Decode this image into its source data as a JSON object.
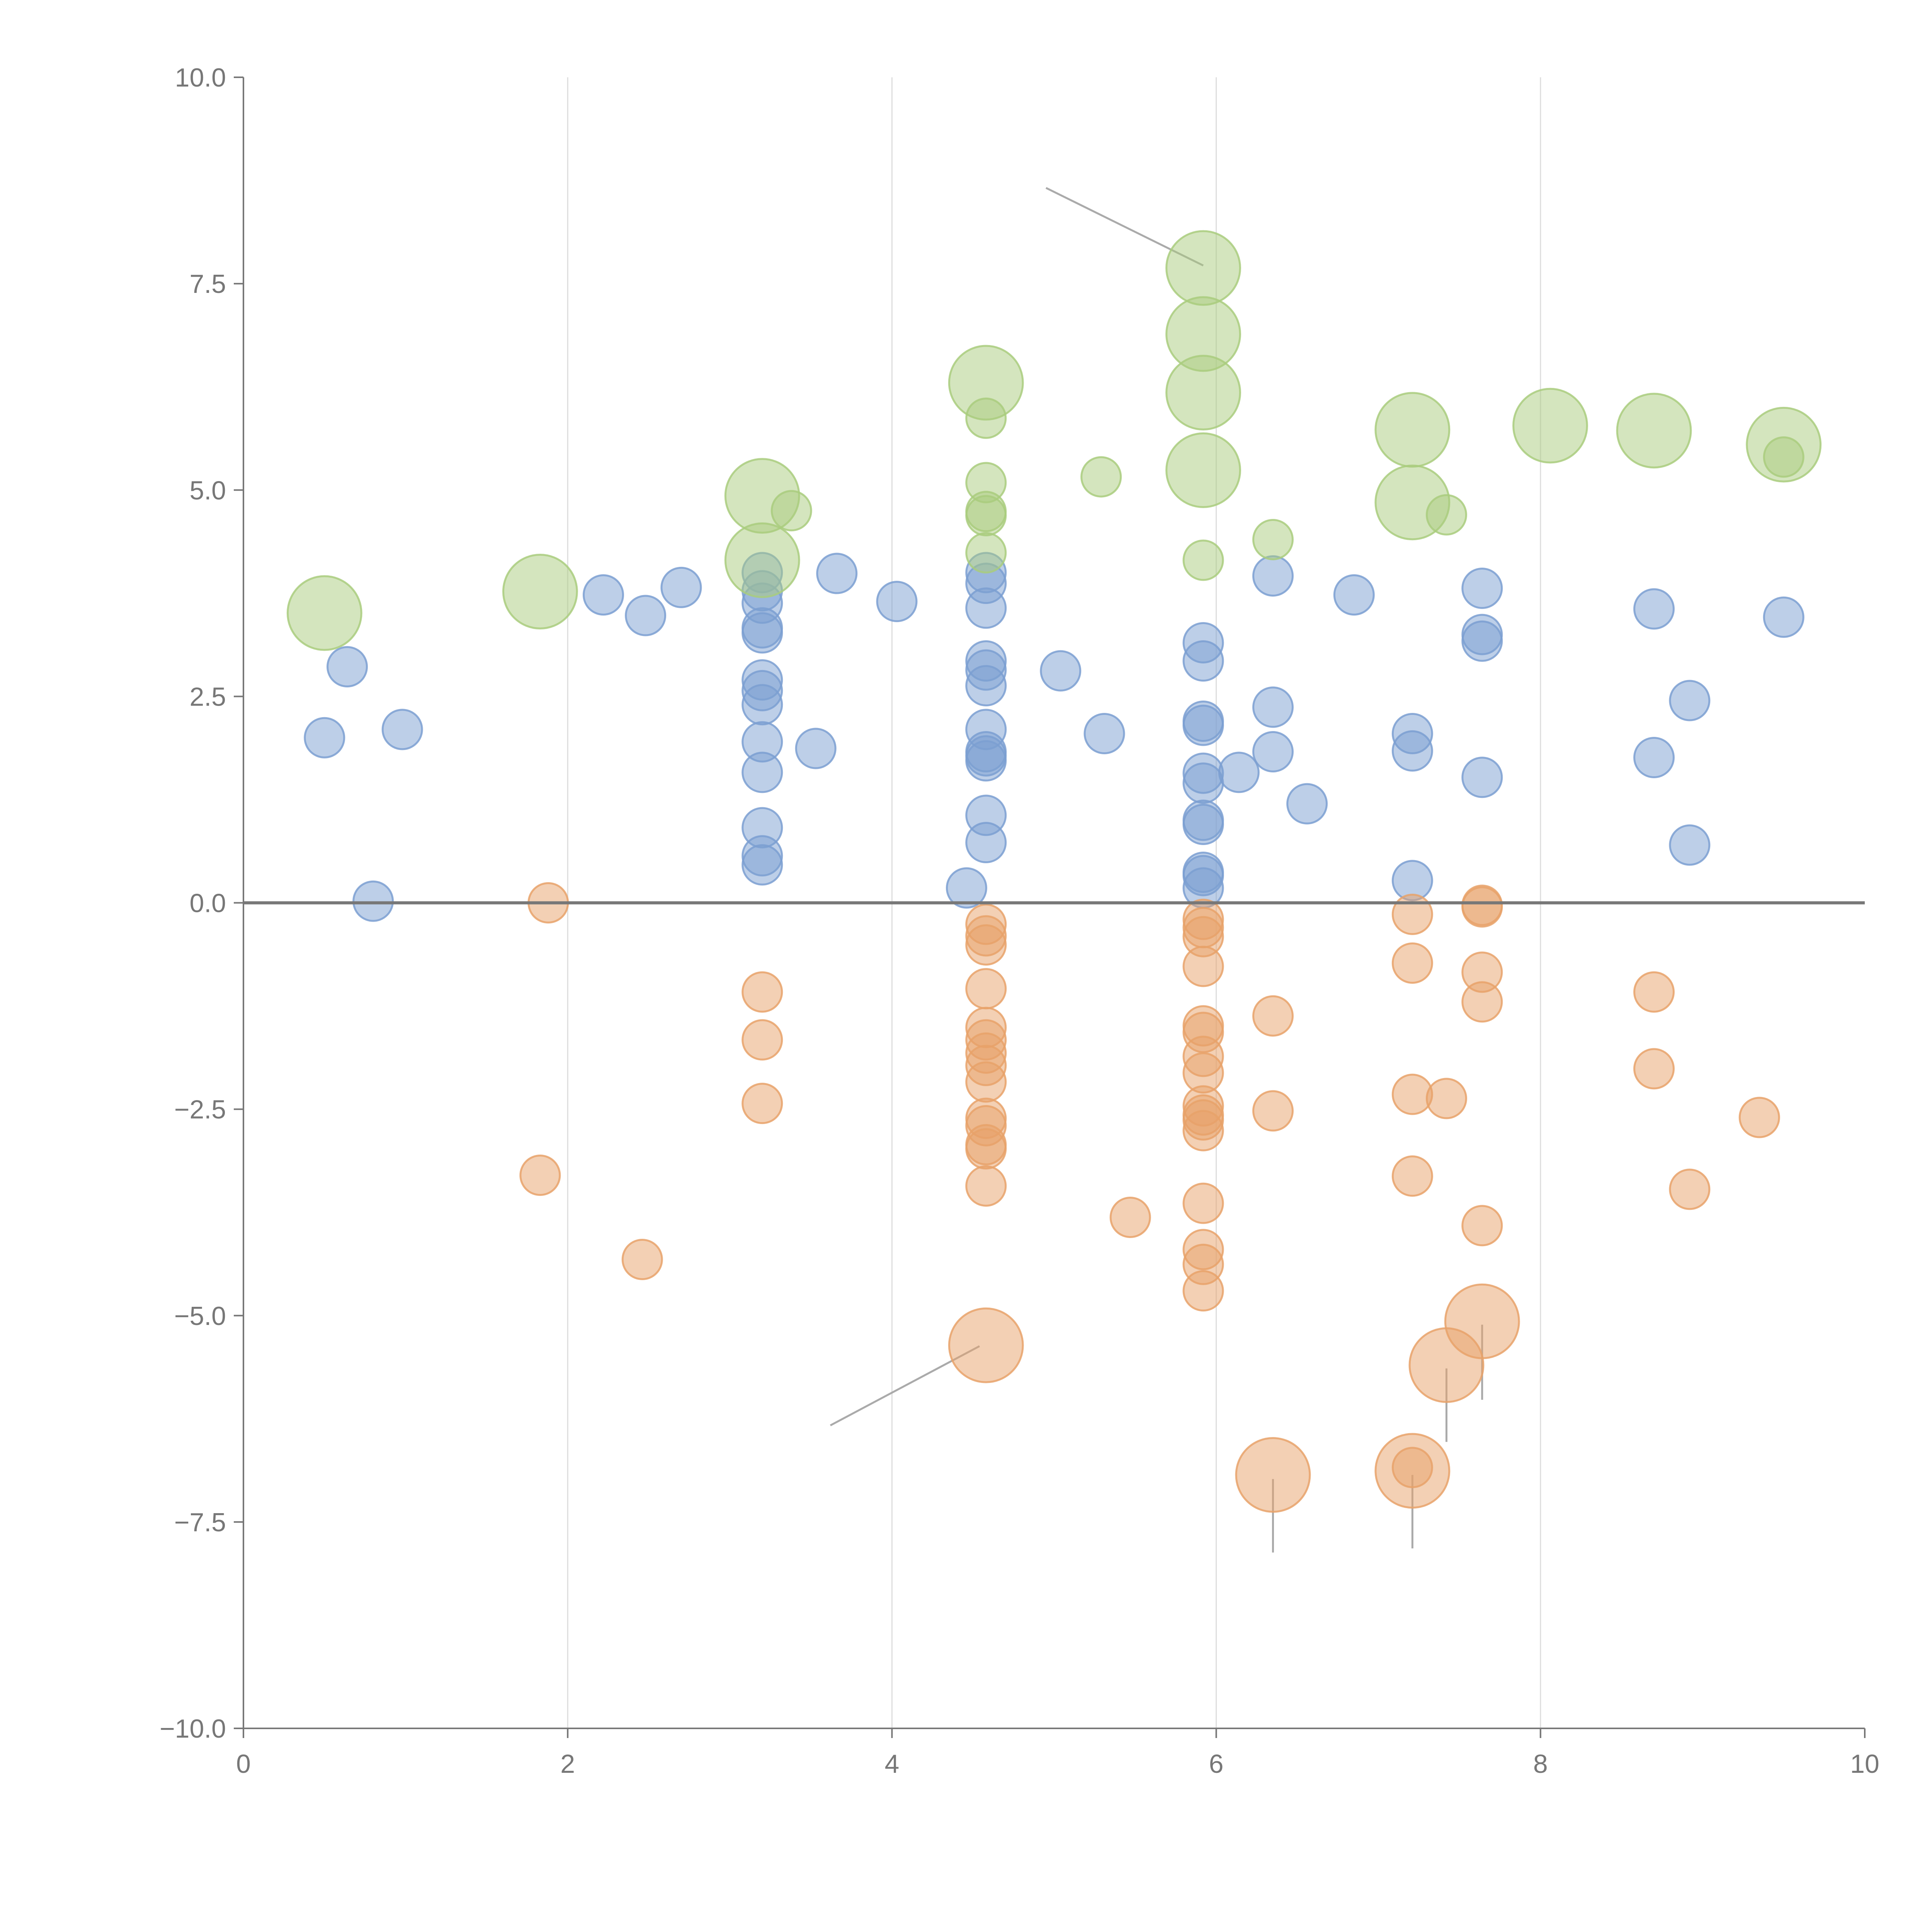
{
  "chart_data": {
    "type": "scatter",
    "subtype": "bubble",
    "title": "",
    "xlabel": "",
    "ylabel": "",
    "xlim": [
      0,
      10
    ],
    "ylim": [
      -10,
      10
    ],
    "xticks": [
      0,
      2,
      4,
      6,
      8,
      10
    ],
    "xtick_labels": [
      "0",
      "2",
      "4",
      "6",
      "8",
      "10"
    ],
    "yticks": [
      -10,
      -7.5,
      -5,
      -2.5,
      0,
      2.5,
      5,
      7.5,
      10
    ],
    "ytick_labels": [
      "−10.0",
      "−7.5",
      "−5.0",
      "−2.5",
      "0.0",
      "2.5",
      "5.0",
      "7.5",
      "10.0"
    ],
    "vertical_gridlines_at": [
      2,
      4,
      6,
      8
    ],
    "zero_line": true,
    "colors": {
      "blue": "#7b9fd1",
      "orange": "#e8a26a",
      "green": "#a9cc7e",
      "grid": "#dddddd",
      "axis": "#777777",
      "zero_line": "#777777",
      "leader": "#aaaaaa"
    },
    "series": [
      {
        "name": "blue",
        "color_key": "blue",
        "points": [
          {
            "x": 0.5,
            "y": 2.0,
            "size": 1
          },
          {
            "x": 0.64,
            "y": 2.86,
            "size": 1
          },
          {
            "x": 0.98,
            "y": 2.1,
            "size": 1
          },
          {
            "x": 0.8,
            "y": 0.02,
            "size": 1
          },
          {
            "x": 2.22,
            "y": 3.73,
            "size": 1
          },
          {
            "x": 2.48,
            "y": 3.48,
            "size": 1
          },
          {
            "x": 2.7,
            "y": 3.82,
            "size": 1
          },
          {
            "x": 3.2,
            "y": 4.0,
            "size": 1
          },
          {
            "x": 3.2,
            "y": 3.78,
            "size": 1
          },
          {
            "x": 3.2,
            "y": 3.63,
            "size": 1
          },
          {
            "x": 3.2,
            "y": 3.33,
            "size": 1
          },
          {
            "x": 3.2,
            "y": 3.27,
            "size": 1
          },
          {
            "x": 3.2,
            "y": 2.7,
            "size": 1
          },
          {
            "x": 3.2,
            "y": 2.57,
            "size": 1
          },
          {
            "x": 3.2,
            "y": 2.4,
            "size": 1
          },
          {
            "x": 3.2,
            "y": 1.95,
            "size": 1
          },
          {
            "x": 3.2,
            "y": 1.58,
            "size": 1
          },
          {
            "x": 3.2,
            "y": 0.91,
            "size": 1
          },
          {
            "x": 3.2,
            "y": 0.57,
            "size": 1
          },
          {
            "x": 3.2,
            "y": 0.46,
            "size": 1
          },
          {
            "x": 3.53,
            "y": 1.87,
            "size": 1
          },
          {
            "x": 3.66,
            "y": 3.99,
            "size": 1
          },
          {
            "x": 4.03,
            "y": 3.65,
            "size": 1
          },
          {
            "x": 4.46,
            "y": 0.18,
            "size": 1
          },
          {
            "x": 4.58,
            "y": 4.0,
            "size": 1
          },
          {
            "x": 4.58,
            "y": 3.87,
            "size": 1
          },
          {
            "x": 4.58,
            "y": 3.57,
            "size": 1
          },
          {
            "x": 4.58,
            "y": 2.93,
            "size": 1
          },
          {
            "x": 4.58,
            "y": 2.82,
            "size": 1
          },
          {
            "x": 4.58,
            "y": 2.63,
            "size": 1
          },
          {
            "x": 4.58,
            "y": 2.1,
            "size": 1
          },
          {
            "x": 4.58,
            "y": 1.83,
            "size": 1
          },
          {
            "x": 4.58,
            "y": 1.78,
            "size": 1
          },
          {
            "x": 4.58,
            "y": 1.72,
            "size": 1
          },
          {
            "x": 4.58,
            "y": 1.06,
            "size": 1
          },
          {
            "x": 4.58,
            "y": 0.73,
            "size": 1
          },
          {
            "x": 5.04,
            "y": 2.81,
            "size": 1
          },
          {
            "x": 5.31,
            "y": 2.05,
            "size": 1
          },
          {
            "x": 5.92,
            "y": 3.15,
            "size": 1
          },
          {
            "x": 5.92,
            "y": 2.93,
            "size": 1
          },
          {
            "x": 5.92,
            "y": 2.2,
            "size": 1
          },
          {
            "x": 5.92,
            "y": 2.15,
            "size": 1
          },
          {
            "x": 5.92,
            "y": 1.57,
            "size": 1
          },
          {
            "x": 5.92,
            "y": 1.45,
            "size": 1
          },
          {
            "x": 5.92,
            "y": 1.0,
            "size": 1
          },
          {
            "x": 5.92,
            "y": 0.95,
            "size": 1
          },
          {
            "x": 5.92,
            "y": 0.37,
            "size": 1
          },
          {
            "x": 5.92,
            "y": 0.33,
            "size": 1
          },
          {
            "x": 5.92,
            "y": 0.18,
            "size": 1
          },
          {
            "x": 6.14,
            "y": 1.58,
            "size": 1
          },
          {
            "x": 6.35,
            "y": 3.96,
            "size": 1
          },
          {
            "x": 6.35,
            "y": 2.37,
            "size": 1
          },
          {
            "x": 6.35,
            "y": 1.83,
            "size": 1
          },
          {
            "x": 6.56,
            "y": 1.2,
            "size": 1
          },
          {
            "x": 6.85,
            "y": 3.73,
            "size": 1
          },
          {
            "x": 7.21,
            "y": 2.05,
            "size": 1
          },
          {
            "x": 7.21,
            "y": 1.84,
            "size": 1
          },
          {
            "x": 7.21,
            "y": 0.27,
            "size": 1
          },
          {
            "x": 7.64,
            "y": 3.81,
            "size": 1
          },
          {
            "x": 7.64,
            "y": 3.25,
            "size": 1
          },
          {
            "x": 7.64,
            "y": 3.17,
            "size": 1
          },
          {
            "x": 7.64,
            "y": 1.52,
            "size": 1
          },
          {
            "x": 8.7,
            "y": 3.56,
            "size": 1
          },
          {
            "x": 8.7,
            "y": 1.76,
            "size": 1
          },
          {
            "x": 8.92,
            "y": 2.45,
            "size": 1
          },
          {
            "x": 8.92,
            "y": 0.7,
            "size": 1
          },
          {
            "x": 9.5,
            "y": 3.46,
            "size": 1
          }
        ]
      },
      {
        "name": "orange",
        "color_key": "orange",
        "points": [
          {
            "x": 1.88,
            "y": 0.0,
            "size": 1
          },
          {
            "x": 1.83,
            "y": -3.3,
            "size": 1
          },
          {
            "x": 2.46,
            "y": -4.32,
            "size": 1
          },
          {
            "x": 3.2,
            "y": -1.08,
            "size": 1
          },
          {
            "x": 3.2,
            "y": -1.66,
            "size": 1
          },
          {
            "x": 3.2,
            "y": -2.43,
            "size": 1
          },
          {
            "x": 4.58,
            "y": -0.26,
            "size": 1
          },
          {
            "x": 4.58,
            "y": -0.4,
            "size": 1
          },
          {
            "x": 4.58,
            "y": -0.51,
            "size": 1
          },
          {
            "x": 4.58,
            "y": -1.04,
            "size": 1
          },
          {
            "x": 4.58,
            "y": -1.51,
            "size": 1
          },
          {
            "x": 4.58,
            "y": -1.66,
            "size": 1
          },
          {
            "x": 4.58,
            "y": -1.82,
            "size": 1
          },
          {
            "x": 4.58,
            "y": -1.97,
            "size": 1
          },
          {
            "x": 4.58,
            "y": -2.17,
            "size": 1
          },
          {
            "x": 4.58,
            "y": -2.61,
            "size": 1
          },
          {
            "x": 4.58,
            "y": -2.7,
            "size": 1
          },
          {
            "x": 4.58,
            "y": -2.93,
            "size": 1
          },
          {
            "x": 4.58,
            "y": -2.98,
            "size": 1
          },
          {
            "x": 4.58,
            "y": -3.43,
            "size": 1
          },
          {
            "x": 4.58,
            "y": -5.36,
            "size": 3.5
          },
          {
            "x": 5.47,
            "y": -3.81,
            "size": 1
          },
          {
            "x": 5.92,
            "y": -0.2,
            "size": 1
          },
          {
            "x": 5.92,
            "y": -0.3,
            "size": 1
          },
          {
            "x": 5.92,
            "y": -0.41,
            "size": 1
          },
          {
            "x": 5.92,
            "y": -0.77,
            "size": 1
          },
          {
            "x": 5.92,
            "y": -1.49,
            "size": 1
          },
          {
            "x": 5.92,
            "y": -1.57,
            "size": 1
          },
          {
            "x": 5.92,
            "y": -1.86,
            "size": 1
          },
          {
            "x": 5.92,
            "y": -2.06,
            "size": 1
          },
          {
            "x": 5.92,
            "y": -2.46,
            "size": 1
          },
          {
            "x": 5.92,
            "y": -2.57,
            "size": 1
          },
          {
            "x": 5.92,
            "y": -2.63,
            "size": 1
          },
          {
            "x": 5.92,
            "y": -2.76,
            "size": 1
          },
          {
            "x": 5.92,
            "y": -3.64,
            "size": 1
          },
          {
            "x": 5.92,
            "y": -4.2,
            "size": 1
          },
          {
            "x": 5.92,
            "y": -4.38,
            "size": 1
          },
          {
            "x": 5.92,
            "y": -4.7,
            "size": 1
          },
          {
            "x": 6.35,
            "y": -1.37,
            "size": 1
          },
          {
            "x": 6.35,
            "y": -2.52,
            "size": 1
          },
          {
            "x": 6.35,
            "y": -6.93,
            "size": 3.5
          },
          {
            "x": 7.21,
            "y": -0.14,
            "size": 1
          },
          {
            "x": 7.21,
            "y": -0.73,
            "size": 1
          },
          {
            "x": 7.21,
            "y": -2.32,
            "size": 1
          },
          {
            "x": 7.21,
            "y": -3.31,
            "size": 1
          },
          {
            "x": 7.21,
            "y": -6.84,
            "size": 1
          },
          {
            "x": 7.21,
            "y": -6.88,
            "size": 3.5
          },
          {
            "x": 7.42,
            "y": -2.37,
            "size": 1
          },
          {
            "x": 7.42,
            "y": -5.6,
            "size": 3.5
          },
          {
            "x": 7.64,
            "y": -0.03,
            "size": 1
          },
          {
            "x": 7.64,
            "y": -0.05,
            "size": 1
          },
          {
            "x": 7.64,
            "y": -0.84,
            "size": 1
          },
          {
            "x": 7.64,
            "y": -1.2,
            "size": 1
          },
          {
            "x": 7.64,
            "y": -3.91,
            "size": 1
          },
          {
            "x": 7.64,
            "y": -5.07,
            "size": 3.5
          },
          {
            "x": 8.7,
            "y": -1.08,
            "size": 1
          },
          {
            "x": 8.7,
            "y": -2.01,
            "size": 1
          },
          {
            "x": 8.92,
            "y": -3.47,
            "size": 1
          },
          {
            "x": 9.35,
            "y": -2.6,
            "size": 1
          }
        ]
      },
      {
        "name": "green",
        "color_key": "green",
        "points": [
          {
            "x": 0.5,
            "y": 3.51,
            "size": 3.5
          },
          {
            "x": 1.83,
            "y": 3.77,
            "size": 3.5
          },
          {
            "x": 3.2,
            "y": 4.93,
            "size": 3.5
          },
          {
            "x": 3.2,
            "y": 4.15,
            "size": 3.5
          },
          {
            "x": 3.38,
            "y": 4.75,
            "size": 1
          },
          {
            "x": 4.58,
            "y": 6.3,
            "size": 3.5
          },
          {
            "x": 4.58,
            "y": 5.87,
            "size": 1
          },
          {
            "x": 4.58,
            "y": 5.09,
            "size": 1
          },
          {
            "x": 4.58,
            "y": 4.74,
            "size": 1
          },
          {
            "x": 4.58,
            "y": 4.69,
            "size": 1
          },
          {
            "x": 4.58,
            "y": 4.24,
            "size": 1
          },
          {
            "x": 5.29,
            "y": 5.16,
            "size": 1
          },
          {
            "x": 5.92,
            "y": 7.69,
            "size": 3.5
          },
          {
            "x": 5.92,
            "y": 6.89,
            "size": 3.5
          },
          {
            "x": 5.92,
            "y": 6.18,
            "size": 3.5
          },
          {
            "x": 5.92,
            "y": 5.24,
            "size": 3.5
          },
          {
            "x": 5.92,
            "y": 4.15,
            "size": 1
          },
          {
            "x": 6.35,
            "y": 4.4,
            "size": 1
          },
          {
            "x": 7.21,
            "y": 5.73,
            "size": 3.5
          },
          {
            "x": 7.21,
            "y": 4.85,
            "size": 3.5
          },
          {
            "x": 7.42,
            "y": 4.7,
            "size": 1
          },
          {
            "x": 8.06,
            "y": 5.78,
            "size": 3.5
          },
          {
            "x": 8.7,
            "y": 5.72,
            "size": 3.5
          },
          {
            "x": 9.5,
            "y": 5.55,
            "size": 3.5
          },
          {
            "x": 9.5,
            "y": 5.4,
            "size": 1
          }
        ]
      }
    ],
    "leader_lines": [
      {
        "from": [
          4.95,
          8.66
        ],
        "to": [
          5.92,
          7.72
        ]
      },
      {
        "from": [
          3.62,
          -6.33
        ],
        "to": [
          4.54,
          -5.37
        ]
      },
      {
        "from": [
          6.35,
          -7.87
        ],
        "to": [
          6.35,
          -6.98
        ]
      },
      {
        "from": [
          7.21,
          -7.82
        ],
        "to": [
          7.21,
          -6.93
        ]
      },
      {
        "from": [
          7.42,
          -6.53
        ],
        "to": [
          7.42,
          -5.64
        ]
      },
      {
        "from": [
          7.64,
          -6.02
        ],
        "to": [
          7.64,
          -5.11
        ]
      }
    ],
    "legend": "none"
  }
}
